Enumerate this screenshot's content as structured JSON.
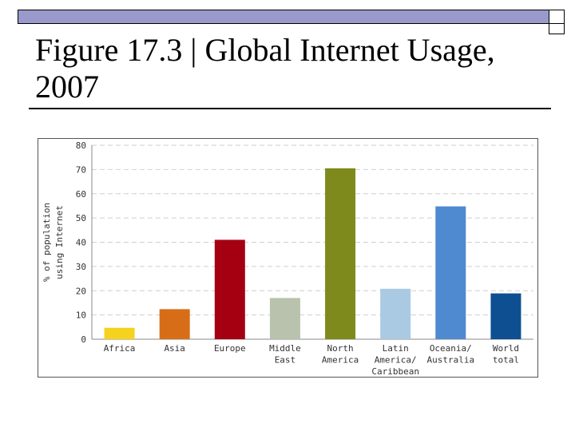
{
  "slide": {
    "title_line1": "Figure 17.3 | Global Internet Usage,",
    "title_line2": "2007",
    "accent_color": "#9999cc"
  },
  "chart_data": {
    "type": "bar",
    "title": "Figure 17.3 | Global Internet Usage, 2007",
    "xlabel": "",
    "ylabel": [
      "% of population",
      "using Internet"
    ],
    "ylim": [
      0,
      80
    ],
    "yticks": [
      0,
      10,
      20,
      30,
      40,
      50,
      60,
      70,
      80
    ],
    "grid": "horizontal dashed",
    "categories": [
      [
        "Africa"
      ],
      [
        "Asia"
      ],
      [
        "Europe"
      ],
      [
        "Middle",
        "East"
      ],
      [
        "North",
        "America"
      ],
      [
        "Latin",
        "America/",
        "Caribbean"
      ],
      [
        "Oceania/",
        "Australia"
      ],
      [
        "World",
        "total"
      ]
    ],
    "values": [
      4.7,
      12.4,
      41.0,
      17.0,
      70.5,
      20.8,
      54.8,
      18.9
    ],
    "colors": [
      "#f5d21e",
      "#d86d17",
      "#a40012",
      "#b8c2ad",
      "#7e8a1b",
      "#aac9e3",
      "#4f8ad0",
      "#0e4f92"
    ]
  }
}
